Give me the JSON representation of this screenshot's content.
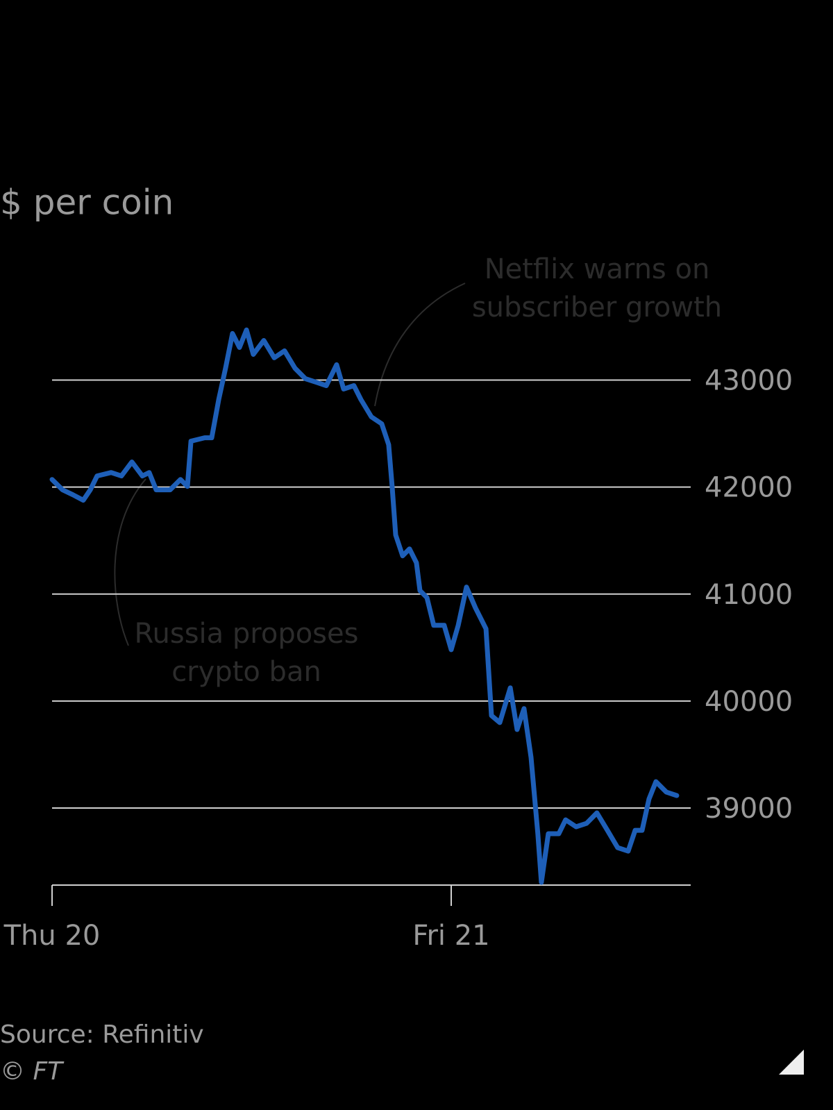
{
  "chart_data": {
    "type": "line",
    "subtitle": "$ per coin",
    "source": "Source: Refinitiv",
    "credit": "© FT",
    "color": "#1e5fb8",
    "grid": true,
    "x": [
      0,
      0.63,
      1.25,
      1.88,
      2.3,
      2.71,
      3.55,
      4.17,
      4.8,
      5.43,
      5.84,
      6.26,
      7.1,
      7.72,
      8.14,
      8.35,
      9.18,
      9.6,
      10.02,
      10.43,
      10.85,
      11.27,
      11.69,
      12.1,
      12.73,
      13.36,
      13.98,
      14.61,
      15.23,
      15.86,
      16.49,
      17.11,
      17.53,
      18.15,
      18.57,
      19.2,
      19.82,
      20.24,
      20.45,
      20.66,
      21.08,
      21.49,
      21.91,
      22.12,
      22.54,
      22.95,
      23.58,
      24,
      24.42,
      24.92,
      25.46,
      26.09,
      26.42,
      26.92,
      27.55,
      27.96,
      28.38,
      28.8,
      29.21,
      29.42,
      29.84,
      30.47,
      30.88,
      31.51,
      32.14,
      32.76,
      33.39,
      34.01,
      34.64,
      35.06,
      35.48,
      35.89,
      36.31,
      36.94,
      37.56
    ],
    "values": [
      42071,
      41974,
      41928,
      41877,
      41974,
      42104,
      42136,
      42104,
      42234,
      42104,
      42136,
      41974,
      41974,
      42071,
      42006,
      42429,
      42461,
      42461,
      42818,
      43110,
      43435,
      43305,
      43468,
      43240,
      43370,
      43208,
      43273,
      43110,
      43013,
      42981,
      42948,
      43143,
      42916,
      42948,
      42818,
      42656,
      42591,
      42396,
      42006,
      41552,
      41357,
      41422,
      41292,
      41032,
      40967,
      40708,
      40708,
      40480,
      40708,
      41065,
      40870,
      40675,
      39864,
      39799,
      40123,
      39734,
      39929,
      39474,
      38760,
      38305,
      38760,
      38760,
      38890,
      38825,
      38857,
      38955,
      38792,
      38630,
      38597,
      38792,
      38792,
      39084,
      39247,
      39149,
      39117
    ],
    "xlim": [
      0,
      38.4
    ],
    "xticks": [
      {
        "value": 0,
        "label": "Thu 20"
      },
      {
        "value": 24,
        "label": "Fri 21"
      }
    ],
    "ylim": [
      38280,
      43600
    ],
    "yticks": [
      39000,
      40000,
      41000,
      42000,
      43000
    ],
    "annotations": [
      {
        "lines": [
          "Netflix warns on",
          "subscriber growth"
        ]
      },
      {
        "lines": [
          "Russia proposes",
          "crypto ban"
        ]
      }
    ]
  }
}
